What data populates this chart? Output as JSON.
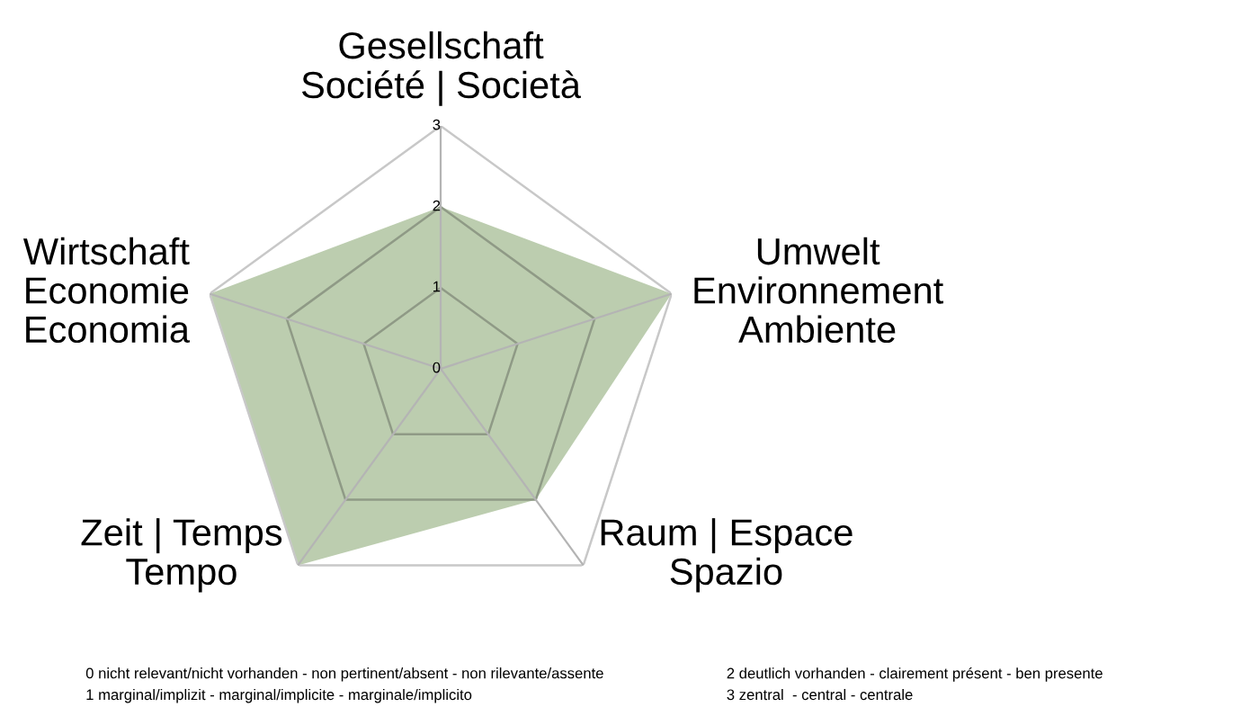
{
  "chart_data": {
    "type": "radar",
    "categories": [
      "Gesellschaft\nSociété | Società",
      "Umwelt\nEnvironnement\nAmbiente",
      "Raum | Espace\nSpazio",
      "Zeit | Temps\nTempo",
      "Wirtschaft\nEconomie\nEconomia"
    ],
    "series": [
      {
        "color": "#bccdaf",
        "values": [
          2,
          3,
          2,
          3,
          3
        ]
      }
    ],
    "ylim": [
      0,
      3
    ],
    "yticks": [
      0,
      1,
      2,
      3
    ],
    "grid": true,
    "annotations": [
      "0 nicht relevant/nicht vorhanden - non pertinent/absent - non rilevante/assente",
      "1 marginal/implizit - marginal/implicite - marginale/implicito",
      "2 deutlich vorhanden - clairement présent - ben presente",
      "3 zentral  - central - centrale"
    ]
  }
}
